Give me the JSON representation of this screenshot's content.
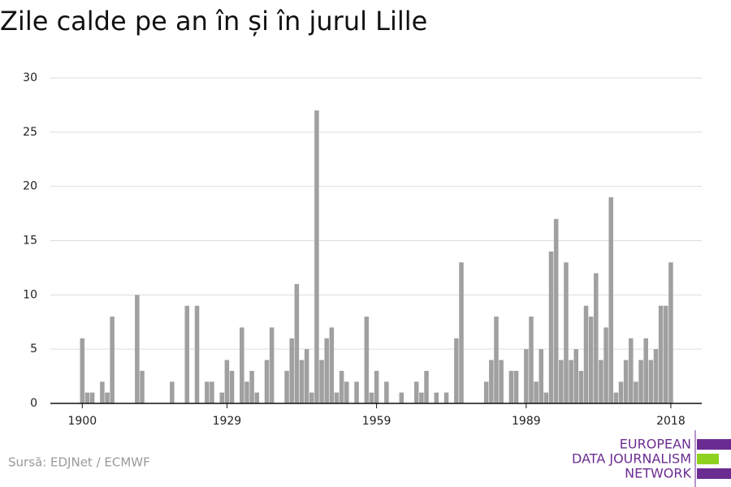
{
  "chart_data": {
    "type": "bar",
    "title": "Zile calde pe an în și în jurul Lille",
    "source": "Sursă: EDJNet / ECMWF",
    "logo": [
      "EUROPEAN",
      "DATA JOURNALISM",
      "NETWORK"
    ],
    "color": "#a0a0a0",
    "grid": true,
    "x": [
      1900,
      1901,
      1902,
      1903,
      1904,
      1905,
      1906,
      1907,
      1908,
      1909,
      1910,
      1911,
      1912,
      1913,
      1914,
      1915,
      1916,
      1917,
      1918,
      1919,
      1920,
      1921,
      1922,
      1923,
      1924,
      1925,
      1926,
      1927,
      1928,
      1929,
      1930,
      1931,
      1932,
      1933,
      1934,
      1935,
      1936,
      1937,
      1938,
      1939,
      1940,
      1941,
      1942,
      1943,
      1944,
      1945,
      1946,
      1947,
      1948,
      1949,
      1950,
      1951,
      1952,
      1953,
      1954,
      1955,
      1956,
      1957,
      1958,
      1959,
      1960,
      1961,
      1962,
      1963,
      1964,
      1965,
      1966,
      1967,
      1968,
      1969,
      1970,
      1971,
      1972,
      1973,
      1974,
      1975,
      1976,
      1977,
      1978,
      1979,
      1980,
      1981,
      1982,
      1983,
      1984,
      1985,
      1986,
      1987,
      1988,
      1989,
      1990,
      1991,
      1992,
      1993,
      1994,
      1995,
      1996,
      1997,
      1998,
      1999,
      2000,
      2001,
      2002,
      2003,
      2004,
      2005,
      2006,
      2007,
      2008,
      2009,
      2010,
      2011,
      2012,
      2013,
      2014,
      2015,
      2016,
      2017,
      2018
    ],
    "values": [
      6,
      1,
      1,
      0,
      2,
      1,
      8,
      0,
      0,
      0,
      0,
      10,
      3,
      0,
      0,
      0,
      0,
      0,
      2,
      0,
      0,
      9,
      0,
      9,
      0,
      2,
      2,
      0,
      1,
      4,
      3,
      0,
      7,
      2,
      3,
      1,
      0,
      4,
      7,
      0,
      0,
      3,
      6,
      11,
      4,
      5,
      1,
      27,
      4,
      6,
      7,
      1,
      3,
      2,
      0,
      2,
      0,
      8,
      1,
      3,
      0,
      2,
      0,
      0,
      1,
      0,
      0,
      2,
      1,
      3,
      0,
      1,
      0,
      1,
      0,
      6,
      13,
      0,
      0,
      0,
      0,
      2,
      4,
      8,
      4,
      0,
      3,
      3,
      0,
      5,
      8,
      2,
      5,
      1,
      14,
      17,
      4,
      13,
      4,
      5,
      3,
      9,
      8,
      12,
      4,
      7,
      19,
      1,
      2,
      4,
      6,
      2,
      4,
      6,
      4,
      5,
      9,
      9,
      13
    ],
    "xlim": [
      1893.6,
      2024.2
    ],
    "xticks": [
      1900,
      1929,
      1959,
      1989,
      2018
    ],
    "ylim": [
      0,
      30
    ],
    "yticks": [
      0,
      5,
      10,
      15,
      20,
      25,
      30
    ]
  }
}
